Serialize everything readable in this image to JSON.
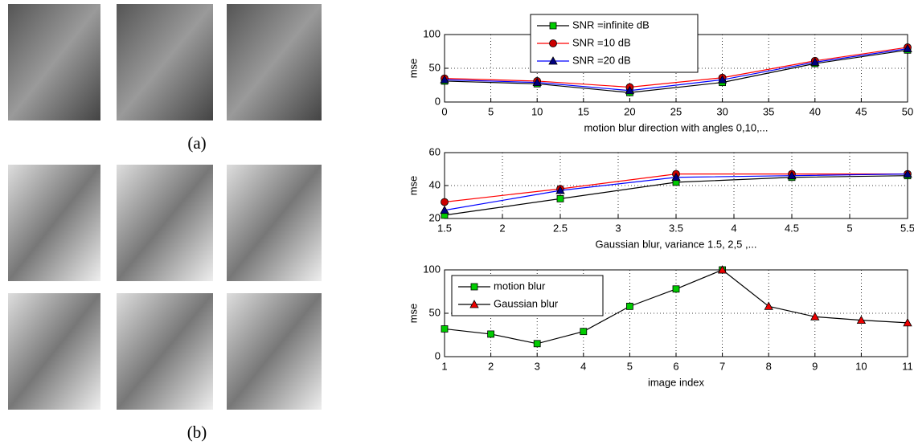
{
  "figure": {
    "labels": [
      "(a)",
      "(b)"
    ]
  },
  "chart_data": [
    {
      "type": "line",
      "ylabel": "mse",
      "xlabel": "motion blur direction with angles 0,10,...",
      "x": [
        0,
        10,
        20,
        30,
        40,
        50
      ],
      "xlim": [
        0,
        50
      ],
      "xticks": [
        0,
        5,
        10,
        15,
        20,
        25,
        30,
        35,
        40,
        45,
        50
      ],
      "ylim": [
        0,
        100
      ],
      "yticks": [
        0,
        50,
        100
      ],
      "grid": true,
      "legend": "upper-center",
      "series": [
        {
          "name": "SNR =infinite dB",
          "color": "#00cc00",
          "line_color": "#000000",
          "marker": "square",
          "values": [
            31,
            27,
            14,
            29,
            57,
            77
          ]
        },
        {
          "name": "SNR =10 dB",
          "color": "#cc0000",
          "line_color": "#ff0000",
          "marker": "circle",
          "values": [
            35,
            31,
            22,
            36,
            61,
            81
          ]
        },
        {
          "name": "SNR =20 dB",
          "color": "#000080",
          "line_color": "#0000ff",
          "marker": "triangle",
          "values": [
            33,
            29,
            17,
            33,
            59,
            79
          ]
        }
      ]
    },
    {
      "type": "line",
      "ylabel": "mse",
      "xlabel": "Gaussian blur, variance 1.5, 2,5 ,...",
      "x": [
        1.5,
        2.5,
        3.5,
        4.5,
        5.5
      ],
      "xlim": [
        1.5,
        5.5
      ],
      "xticks": [
        1.5,
        2,
        2.5,
        3,
        3.5,
        4,
        4.5,
        5,
        5.5
      ],
      "ylim": [
        20,
        60
      ],
      "yticks": [
        20,
        40,
        60
      ],
      "grid": true,
      "series": [
        {
          "color": "#00cc00",
          "line_color": "#000000",
          "marker": "square",
          "values": [
            22,
            32,
            42,
            45,
            46
          ]
        },
        {
          "color": "#cc0000",
          "line_color": "#ff0000",
          "marker": "circle",
          "values": [
            30,
            38,
            47,
            47,
            47
          ]
        },
        {
          "color": "#000080",
          "line_color": "#0000ff",
          "marker": "triangle",
          "values": [
            25,
            37,
            45,
            46,
            47
          ]
        }
      ]
    },
    {
      "type": "line",
      "ylabel": "mse",
      "xlabel": "image index",
      "x": [
        1,
        2,
        3,
        4,
        5,
        6,
        7,
        8,
        9,
        10,
        11
      ],
      "xlim": [
        1,
        11
      ],
      "xticks": [
        1,
        2,
        3,
        4,
        5,
        6,
        7,
        8,
        9,
        10,
        11
      ],
      "ylim": [
        0,
        100
      ],
      "yticks": [
        0,
        50,
        100
      ],
      "grid": true,
      "legend": "upper-left",
      "series": [
        {
          "name": "motion blur",
          "color": "#00cc00",
          "line_color": "#000000",
          "marker": "square",
          "values": [
            32,
            26,
            15,
            29,
            58,
            78,
            100,
            null,
            null,
            null,
            null
          ]
        },
        {
          "name": "Gaussian blur",
          "color": "#ee0000",
          "line_color": "#000000",
          "marker": "triangle",
          "values": [
            null,
            null,
            null,
            null,
            null,
            null,
            100,
            58,
            46,
            42,
            39
          ]
        }
      ]
    }
  ]
}
